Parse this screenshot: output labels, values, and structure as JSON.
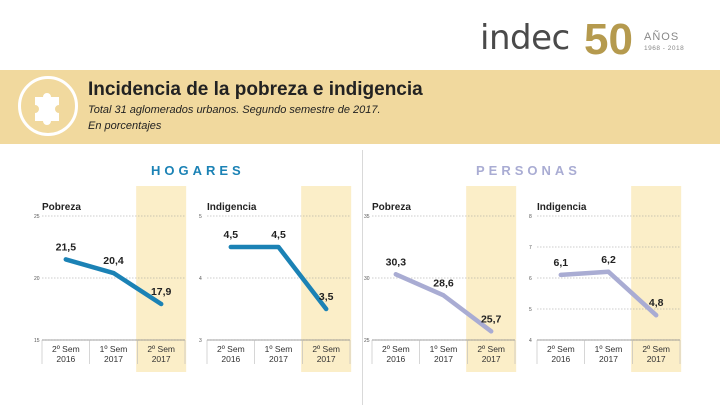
{
  "logo": {
    "brand": "indec",
    "anniversary_number": "50",
    "anos": "AÑOS",
    "years": "1968 - 2018"
  },
  "header": {
    "title": "Incidencia de la pobreza e indigencia",
    "subtitle": "Total 31 aglomerados urbanos. Segundo semestre de 2017.",
    "unit_note": "En porcentajes"
  },
  "sections": {
    "left": "HOGARES",
    "right": "PERSONAS"
  },
  "colors": {
    "hogares": "#1b82b5",
    "personas": "#a9acd3",
    "highlight": "#fbeec8",
    "header_bg": "#f1d99e",
    "hogares_title": "#1b82b5",
    "personas_title": "#a9acd3"
  },
  "chart_data": [
    {
      "type": "line",
      "group": "hogares",
      "title": "Pobreza",
      "categories": [
        "2º Sem 2016",
        "1º Sem 2017",
        "2º Sem 2017"
      ],
      "values": [
        21.5,
        20.4,
        17.9
      ],
      "value_labels": [
        "21,5",
        "20,4",
        "17,9"
      ],
      "ylim": [
        15,
        25
      ],
      "yticks": [
        "15",
        "20",
        "25"
      ],
      "highlight_index": 2
    },
    {
      "type": "line",
      "group": "hogares",
      "title": "Indigencia",
      "categories": [
        "2º Sem 2016",
        "1º Sem 2017",
        "2º Sem 2017"
      ],
      "values": [
        4.5,
        4.5,
        3.5
      ],
      "value_labels": [
        "4,5",
        "4,5",
        "3,5"
      ],
      "ylim": [
        3,
        5
      ],
      "yticks": [
        "3",
        "4",
        "5"
      ],
      "highlight_index": 2
    },
    {
      "type": "line",
      "group": "personas",
      "title": "Pobreza",
      "categories": [
        "2º Sem 2016",
        "1º Sem 2017",
        "2º Sem 2017"
      ],
      "values": [
        30.3,
        28.6,
        25.7
      ],
      "value_labels": [
        "30,3",
        "28,6",
        "25,7"
      ],
      "ylim": [
        25,
        35
      ],
      "yticks": [
        "25",
        "30",
        "35"
      ],
      "highlight_index": 2
    },
    {
      "type": "line",
      "group": "personas",
      "title": "Indigencia",
      "categories": [
        "2º Sem 2016",
        "1º Sem 2017",
        "2º Sem 2017"
      ],
      "values": [
        6.1,
        6.2,
        4.8
      ],
      "value_labels": [
        "6,1",
        "6,2",
        "4,8"
      ],
      "ylim": [
        4,
        8
      ],
      "yticks": [
        "4",
        "5",
        "6",
        "7",
        "8"
      ],
      "highlight_index": 2
    }
  ]
}
